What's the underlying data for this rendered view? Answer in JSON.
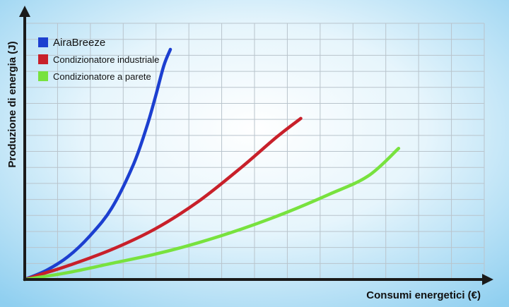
{
  "chart_data": {
    "type": "line",
    "title": "",
    "xlabel": "Consumi energetici (€)",
    "ylabel": "Produzione di energia (J)",
    "x_tick_labels": false,
    "y_tick_labels": false,
    "xlim": [
      0,
      100
    ],
    "ylim": [
      0,
      100
    ],
    "grid": true,
    "legend_position": "top-left",
    "background": "#b8e2f6",
    "series": [
      {
        "name": "AiraBreeze",
        "color": "#1c3fd0",
        "x": [
          0,
          5,
          10,
          15,
          20,
          25,
          28,
          30,
          32,
          33.5
        ],
        "y": [
          0,
          4,
          10,
          19,
          31,
          50,
          66,
          79,
          93,
          100
        ]
      },
      {
        "name": "Condizionatore industriale",
        "color": "#c8202a",
        "x": [
          0,
          5,
          10,
          20,
          30,
          40,
          50,
          58,
          63.5
        ],
        "y": [
          0,
          3,
          6,
          13,
          22,
          34,
          49,
          62,
          70
        ]
      },
      {
        "name": "Condizionatore a parete",
        "color": "#78e23e",
        "x": [
          0,
          10,
          20,
          30,
          40,
          50,
          60,
          70,
          79,
          86
        ],
        "y": [
          0,
          3,
          7,
          11,
          16,
          22,
          29,
          37,
          45,
          57
        ]
      }
    ]
  }
}
